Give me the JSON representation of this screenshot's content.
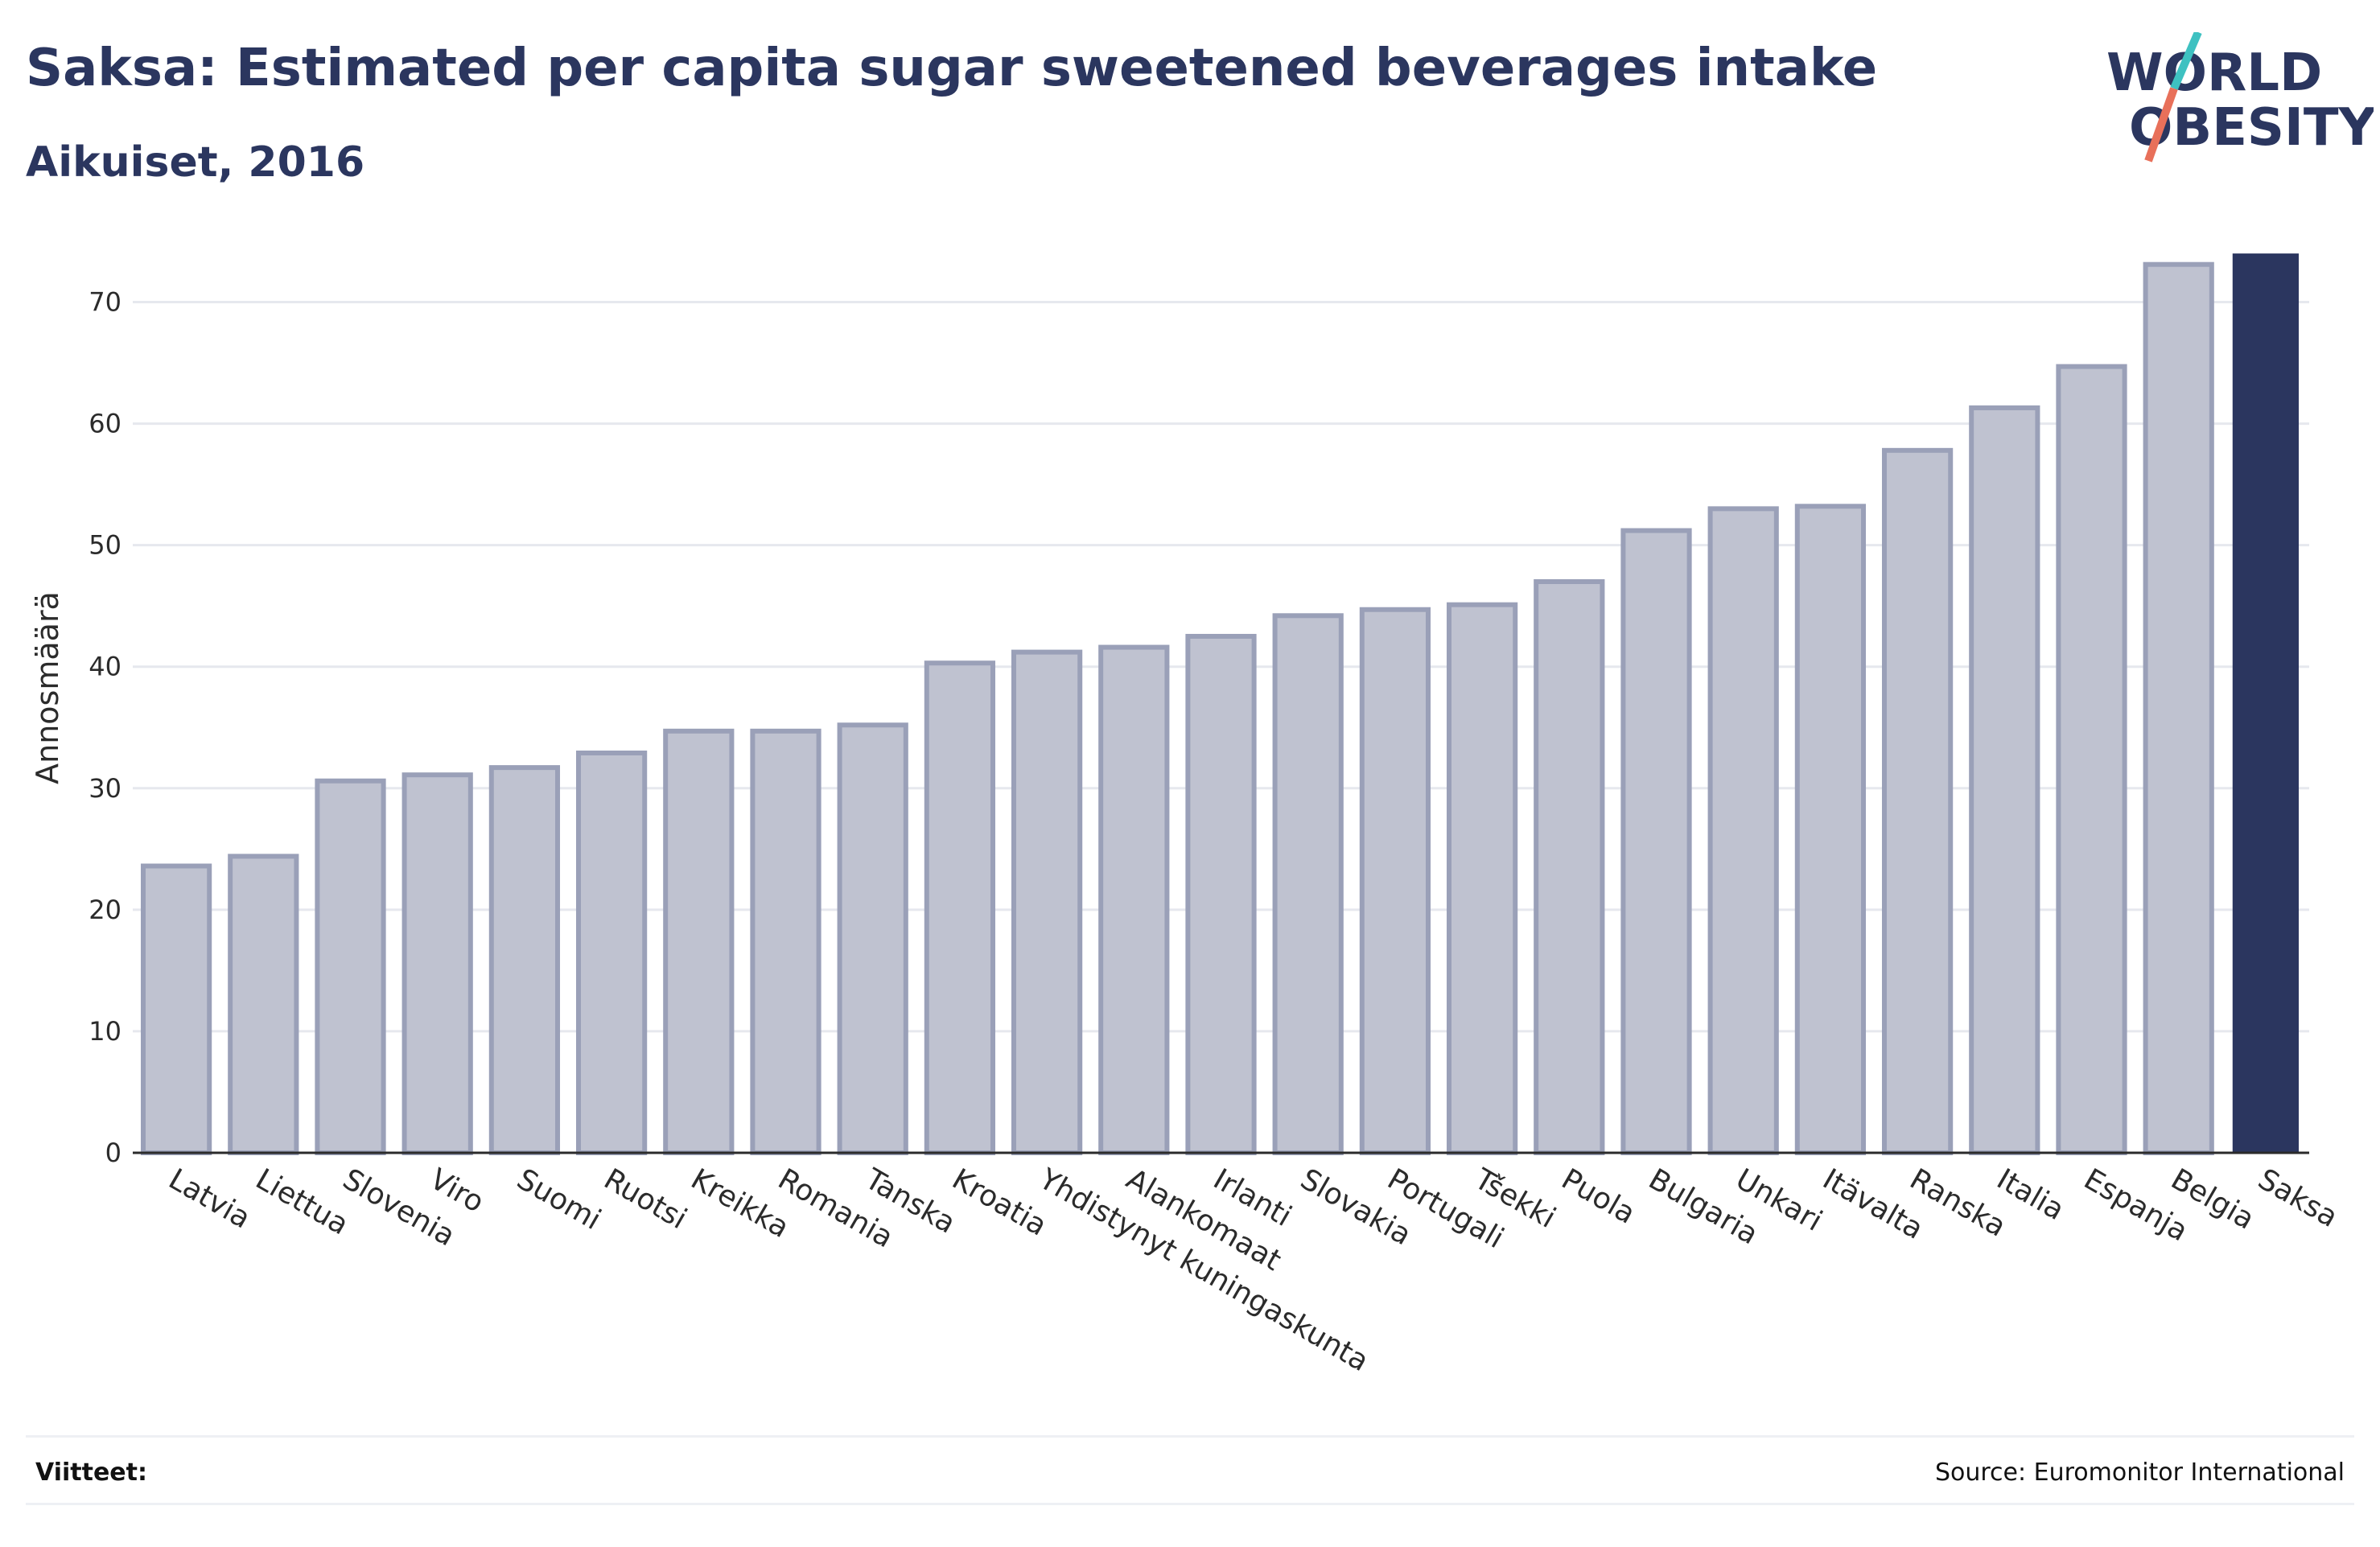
{
  "header": {
    "title": "Saksa: Estimated per capita sugar sweetened beverages intake",
    "subtitle": "Aikuiset, 2016"
  },
  "logo": {
    "line1": "WORLD",
    "line2": "OBESITY"
  },
  "footer": {
    "references_label": "Viitteet:",
    "source": "Source: Euromonitor International"
  },
  "colors": {
    "bar": "#bfc2d0",
    "bar_border": "#9aa0b8",
    "highlight": "#2b365f",
    "grid": "#e6e8ee"
  },
  "chart_data": {
    "type": "bar",
    "title": "Saksa: Estimated per capita sugar sweetened beverages intake",
    "subtitle": "Aikuiset, 2016",
    "xlabel": "",
    "ylabel": "Annosmäärä",
    "ylim": [
      0,
      75
    ],
    "yticks": [
      0,
      10,
      20,
      30,
      40,
      50,
      60,
      70
    ],
    "grid": true,
    "highlight": "Saksa",
    "categories": [
      "Latvia",
      "Liettua",
      "Slovenia",
      "Viro",
      "Suomi",
      "Ruotsi",
      "Kreikka",
      "Romania",
      "Tanska",
      "Kroatia",
      "Yhdistynyt kuningaskunta",
      "Alankomaat",
      "Irlanti",
      "Slovakia",
      "Portugali",
      "Tšekki",
      "Puola",
      "Bulgaria",
      "Unkari",
      "Itävalta",
      "Ranska",
      "Italia",
      "Espanja",
      "Belgia",
      "Saksa"
    ],
    "values": [
      23.6,
      24.4,
      30.6,
      31.1,
      31.7,
      32.9,
      34.7,
      34.7,
      35.2,
      40.3,
      41.2,
      41.6,
      42.5,
      44.2,
      44.7,
      45.1,
      47.0,
      51.2,
      53.0,
      53.2,
      57.8,
      61.3,
      64.7,
      73.1,
      74.0
    ]
  }
}
